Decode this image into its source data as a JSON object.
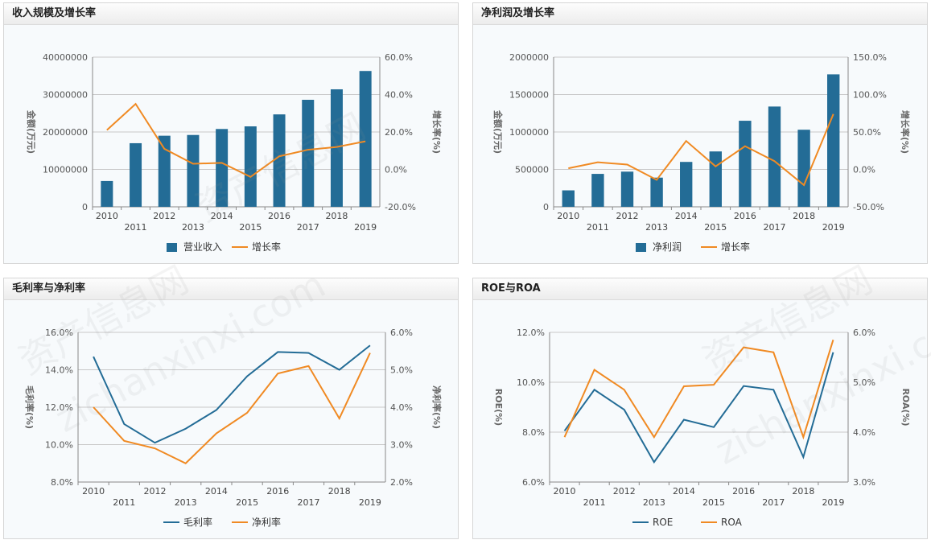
{
  "watermark": [
    "资产信息网",
    "zichanxinxi.com"
  ],
  "colors": {
    "bar": "#236c96",
    "orange": "#f08a23",
    "blue_line": "#236c96"
  },
  "panels": [
    {
      "title": "收入规模及增长率",
      "chart_data": {
        "type": "bar+line",
        "categories": [
          "2010",
          "2011",
          "2012",
          "2013",
          "2014",
          "2015",
          "2016",
          "2017",
          "2018",
          "2019"
        ],
        "ylabel_left": "金额(万元)",
        "ylabel_right": "增长率(%)",
        "left_ticks": [
          "0",
          "10000000",
          "20000000",
          "30000000",
          "40000000"
        ],
        "right_ticks": [
          "-20.0%",
          "0.0%",
          "20.0%",
          "40.0%",
          "60.0%"
        ],
        "ylim_left": [
          0,
          40000000
        ],
        "ylim_right": [
          -20,
          60
        ],
        "series": [
          {
            "name": "营业收入",
            "kind": "bar",
            "axis": "left",
            "values": [
              6900000,
              17000000,
              19000000,
              19200000,
              20800000,
              21500000,
              24700000,
              28600000,
              31400000,
              36300000
            ]
          },
          {
            "name": "增长率",
            "kind": "line",
            "axis": "right",
            "values": [
              21,
              35,
              11,
              3,
              3.5,
              -4,
              7,
              10.5,
              12,
              15
            ]
          }
        ],
        "legend": "bottom"
      }
    },
    {
      "title": "净利润及增长率",
      "chart_data": {
        "type": "bar+line",
        "categories": [
          "2010",
          "2011",
          "2012",
          "2013",
          "2014",
          "2015",
          "2016",
          "2017",
          "2018",
          "2019"
        ],
        "ylabel_left": "金额(万元)",
        "ylabel_right": "增长率(%)",
        "left_ticks": [
          "0",
          "500000",
          "1000000",
          "1500000",
          "2000000"
        ],
        "right_ticks": [
          "-50.0%",
          "0.0%",
          "50.0%",
          "100.0%",
          "150.0%"
        ],
        "ylim_left": [
          0,
          2000000
        ],
        "ylim_right": [
          -50,
          150
        ],
        "series": [
          {
            "name": "净利润",
            "kind": "bar",
            "axis": "left",
            "values": [
              220000,
              440000,
              470000,
              390000,
              600000,
              740000,
              1150000,
              1340000,
              1030000,
              1770000
            ]
          },
          {
            "name": "增长率",
            "kind": "line",
            "axis": "right",
            "values": [
              1.5,
              9.5,
              6.5,
              -14,
              38,
              4,
              31,
              11,
              -21,
              74
            ]
          }
        ],
        "legend": "bottom"
      }
    },
    {
      "title": "毛利率与净利率",
      "chart_data": {
        "type": "line",
        "categories": [
          "2010",
          "2011",
          "2012",
          "2013",
          "2014",
          "2015",
          "2016",
          "2017",
          "2018",
          "2019"
        ],
        "ylabel_left": "毛利率(%)",
        "ylabel_right": "净利率(%)",
        "left_ticks": [
          "8.0%",
          "10.0%",
          "12.0%",
          "14.0%",
          "16.0%"
        ],
        "right_ticks": [
          "2.0%",
          "3.0%",
          "4.0%",
          "5.0%",
          "6.0%"
        ],
        "ylim_left": [
          8,
          16
        ],
        "ylim_right": [
          2,
          6
        ],
        "series": [
          {
            "name": "毛利率",
            "kind": "line",
            "axis": "left",
            "color": "#236c96",
            "values": [
              14.7,
              11.1,
              10.1,
              10.85,
              11.85,
              13.65,
              14.95,
              14.9,
              14.0,
              15.3
            ]
          },
          {
            "name": "净利率",
            "kind": "line",
            "axis": "right",
            "color": "#f08a23",
            "values": [
              4.0,
              3.1,
              2.9,
              2.5,
              3.3,
              3.85,
              4.9,
              5.1,
              3.7,
              5.45
            ]
          }
        ],
        "legend": "bottom"
      }
    },
    {
      "title": "ROE与ROA",
      "chart_data": {
        "type": "line",
        "categories": [
          "2010",
          "2011",
          "2012",
          "2013",
          "2014",
          "2015",
          "2016",
          "2017",
          "2018",
          "2019"
        ],
        "ylabel_left": "ROE(%)",
        "ylabel_right": "ROA(%)",
        "left_ticks": [
          "6.0%",
          "8.0%",
          "10.0%",
          "12.0%"
        ],
        "right_ticks": [
          "3.0%",
          "4.0%",
          "5.0%",
          "6.0%"
        ],
        "ylim_left": [
          6,
          12
        ],
        "ylim_right": [
          3,
          6
        ],
        "series": [
          {
            "name": "ROE",
            "kind": "line",
            "axis": "left",
            "color": "#236c96",
            "values": [
              8.05,
              9.7,
              8.9,
              6.8,
              8.5,
              8.2,
              9.85,
              9.7,
              7.0,
              11.2
            ]
          },
          {
            "name": "ROA",
            "kind": "line",
            "axis": "right",
            "color": "#f08a23",
            "values": [
              3.9,
              5.25,
              4.85,
              3.9,
              4.92,
              4.95,
              5.7,
              5.6,
              3.9,
              5.85
            ]
          }
        ],
        "legend": "bottom"
      }
    }
  ]
}
